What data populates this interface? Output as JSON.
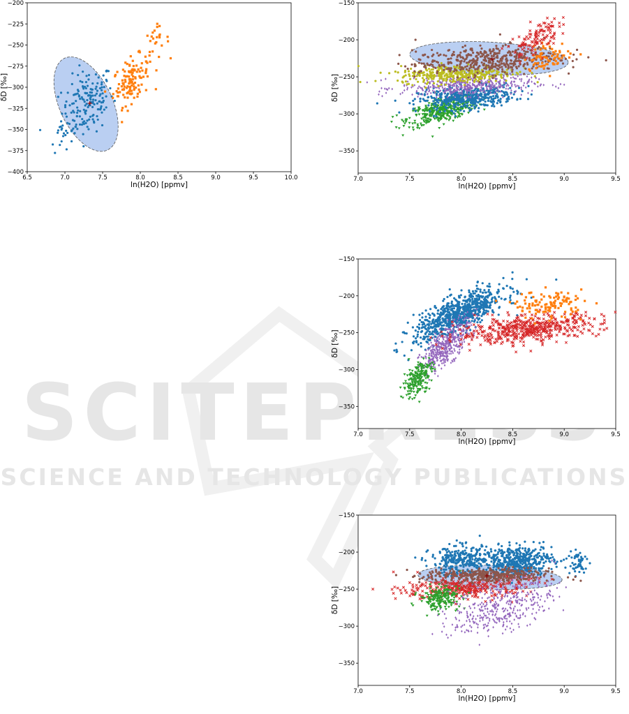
{
  "watermark": {
    "main": "SCITEPRESS",
    "sub": "SCIENCE AND TECHNOLOGY PUBLICATIONS"
  },
  "colors": {
    "blue": "#1f77b4",
    "orange": "#ff7f0e",
    "green": "#2ca02c",
    "red": "#d62728",
    "purple": "#9467bd",
    "brown": "#8c564b",
    "olive": "#bcbd22",
    "ellipse_fill": "#aec7f0"
  },
  "chart_data": [
    {
      "type": "scatter",
      "xlabel": "ln(H2O) [ppmv]",
      "ylabel": "δD [‰]",
      "xlim": [
        6.5,
        10.0
      ],
      "ylim": [
        -400,
        -200
      ],
      "xticks": [
        "6.5",
        "7.0",
        "7.5",
        "8.0",
        "8.5",
        "9.0",
        "9.5",
        "10.0"
      ],
      "yticks": [
        "−200",
        "−225",
        "−250",
        "−275",
        "−300",
        "−325",
        "−350",
        "−375",
        "−400"
      ],
      "clusters": [
        {
          "color": "blue",
          "marker": "circle",
          "n": 170,
          "cx": 7.3,
          "cy": -318,
          "sx": 0.17,
          "sy": 20,
          "rho": 0.3
        },
        {
          "color": "blue",
          "marker": "circle",
          "n": 18,
          "cx": 6.95,
          "cy": -355,
          "sx": 0.08,
          "sy": 10,
          "rho": 0.2
        },
        {
          "color": "orange",
          "marker": "square",
          "n": 120,
          "cx": 7.88,
          "cy": -292,
          "sx": 0.12,
          "sy": 14,
          "rho": 0.4
        },
        {
          "color": "orange",
          "marker": "square",
          "n": 25,
          "cx": 8.2,
          "cy": -248,
          "sx": 0.09,
          "sy": 10,
          "rho": 0.3
        }
      ],
      "ellipse": {
        "cx": 7.28,
        "cy": -320,
        "rx": 0.35,
        "ry": 60,
        "angle": -25
      },
      "center_marker": {
        "x": 7.33,
        "y": -319
      }
    },
    {
      "type": "scatter",
      "xlabel": "ln(H2O) [ppmv]",
      "ylabel": "δD [‰]",
      "xlim": [
        7.0,
        9.5
      ],
      "ylim": [
        -380,
        -150
      ],
      "xticks": [
        "7.0",
        "7.5",
        "8.0",
        "8.5",
        "9.0",
        "9.5"
      ],
      "yticks": [
        "−150",
        "−200",
        "−250",
        "−300",
        "−350"
      ],
      "clusters": [
        {
          "color": "green",
          "marker": "triangle",
          "n": 400,
          "cx": 7.82,
          "cy": -295,
          "sx": 0.17,
          "sy": 10,
          "rho": 0.6
        },
        {
          "color": "blue",
          "marker": "circle",
          "n": 450,
          "cx": 8.05,
          "cy": -278,
          "sx": 0.23,
          "sy": 8,
          "rho": 0.3
        },
        {
          "color": "purple",
          "marker": "diamond",
          "n": 450,
          "cx": 8.05,
          "cy": -262,
          "sx": 0.32,
          "sy": 7,
          "rho": 0.2
        },
        {
          "color": "olive",
          "marker": "circle",
          "n": 350,
          "cx": 7.95,
          "cy": -246,
          "sx": 0.28,
          "sy": 6,
          "rho": 0.1
        },
        {
          "color": "brown",
          "marker": "circle",
          "n": 450,
          "cx": 8.25,
          "cy": -228,
          "sx": 0.35,
          "sy": 10,
          "rho": 0.3
        },
        {
          "color": "orange",
          "marker": "square",
          "n": 70,
          "cx": 8.85,
          "cy": -222,
          "sx": 0.12,
          "sy": 9,
          "rho": 0.2
        },
        {
          "color": "red",
          "marker": "x",
          "n": 110,
          "cx": 8.72,
          "cy": -198,
          "sx": 0.11,
          "sy": 13,
          "rho": 0.6
        }
      ],
      "ellipse": {
        "cx": 8.27,
        "cy": -225,
        "rx": 0.77,
        "ry": 22,
        "angle": 3
      },
      "center_marker": {
        "x": 8.3,
        "y": -226
      }
    },
    {
      "type": "scatter",
      "xlabel": "ln(H2O) [ppmv]",
      "ylabel": "δD [‰]",
      "xlim": [
        7.0,
        9.5
      ],
      "ylim": [
        -380,
        -150
      ],
      "xticks": [
        "7.0",
        "7.5",
        "8.0",
        "8.5",
        "9.0",
        "9.5"
      ],
      "yticks": [
        "−150",
        "−200",
        "−250",
        "−300",
        "−350"
      ],
      "clusters": [
        {
          "color": "blue",
          "marker": "circle",
          "n": 800,
          "cx": 7.98,
          "cy": -225,
          "sx": 0.22,
          "sy": 18,
          "rho": 0.75
        },
        {
          "color": "purple",
          "marker": "diamond",
          "n": 450,
          "cx": 7.85,
          "cy": -268,
          "sx": 0.12,
          "sy": 18,
          "rho": 0.75
        },
        {
          "color": "green",
          "marker": "triangle",
          "n": 200,
          "cx": 7.58,
          "cy": -312,
          "sx": 0.07,
          "sy": 13,
          "rho": 0.5
        },
        {
          "color": "red",
          "marker": "x",
          "n": 500,
          "cx": 8.65,
          "cy": -245,
          "sx": 0.35,
          "sy": 10,
          "rho": 0.45
        },
        {
          "color": "orange",
          "marker": "square",
          "n": 120,
          "cx": 8.85,
          "cy": -212,
          "sx": 0.17,
          "sy": 9,
          "rho": 0.1
        }
      ]
    },
    {
      "type": "scatter",
      "xlabel": "ln(H2O) [ppmv]",
      "ylabel": "δD [‰]",
      "xlim": [
        7.0,
        9.5
      ],
      "ylim": [
        -380,
        -150
      ],
      "xticks": [
        "7.0",
        "7.5",
        "8.0",
        "8.5",
        "9.0",
        "9.5"
      ],
      "yticks": [
        "−150",
        "−200",
        "−250",
        "−300",
        "−350"
      ],
      "clusters": [
        {
          "color": "blue",
          "marker": "circle",
          "n": 300,
          "cx": 8.0,
          "cy": -212,
          "sx": 0.15,
          "sy": 10,
          "rho": 0.1
        },
        {
          "color": "blue",
          "marker": "circle",
          "n": 500,
          "cx": 8.55,
          "cy": -212,
          "sx": 0.17,
          "sy": 10,
          "rho": 0.1
        },
        {
          "color": "blue",
          "marker": "circle",
          "n": 50,
          "cx": 9.12,
          "cy": -215,
          "sx": 0.05,
          "sy": 10,
          "rho": 0.0
        },
        {
          "color": "red",
          "marker": "x",
          "n": 350,
          "cx": 8.05,
          "cy": -248,
          "sx": 0.3,
          "sy": 8,
          "rho": 0.2
        },
        {
          "color": "green",
          "marker": "triangle",
          "n": 200,
          "cx": 7.8,
          "cy": -262,
          "sx": 0.1,
          "sy": 8,
          "rho": 0.2
        },
        {
          "color": "purple",
          "marker": "diamond",
          "n": 400,
          "cx": 8.4,
          "cy": -272,
          "sx": 0.25,
          "sy": 20,
          "rho": 0.5
        },
        {
          "color": "brown",
          "marker": "circle",
          "n": 350,
          "cx": 8.25,
          "cy": -232,
          "sx": 0.3,
          "sy": 5,
          "rho": 0.0
        }
      ],
      "ellipse": {
        "cx": 8.28,
        "cy": -234,
        "rx": 0.7,
        "ry": 16,
        "angle": 2
      },
      "center_marker": {
        "x": 8.25,
        "y": -232
      }
    }
  ]
}
